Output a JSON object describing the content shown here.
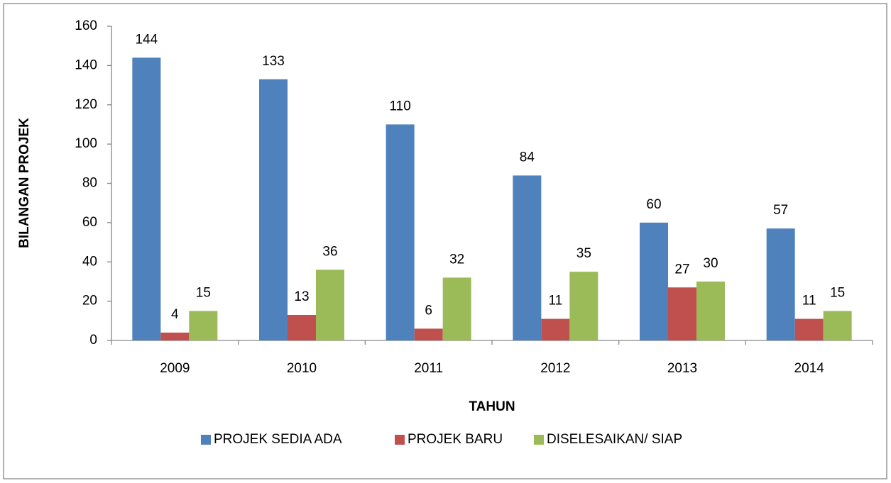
{
  "chart_data": {
    "type": "bar",
    "categories": [
      "2009",
      "2010",
      "2011",
      "2012",
      "2013",
      "2014"
    ],
    "series": [
      {
        "name": "PROJEK SEDIA ADA",
        "color": "#4f81bd",
        "values": [
          144,
          133,
          110,
          84,
          60,
          57
        ]
      },
      {
        "name": "PROJEK BARU",
        "color": "#c0504d",
        "values": [
          4,
          13,
          6,
          11,
          27,
          11
        ]
      },
      {
        "name": "DISELESAIKAN/ SIAP",
        "color": "#9bbb59",
        "values": [
          15,
          36,
          32,
          35,
          30,
          15
        ]
      }
    ],
    "x_label": "TAHUN",
    "y_label": "BILANGAN PROJEK",
    "ylim": [
      0,
      160
    ],
    "yticks": [
      0,
      20,
      40,
      60,
      80,
      100,
      120,
      140,
      160
    ],
    "grid": false,
    "legend": "bottom"
  }
}
